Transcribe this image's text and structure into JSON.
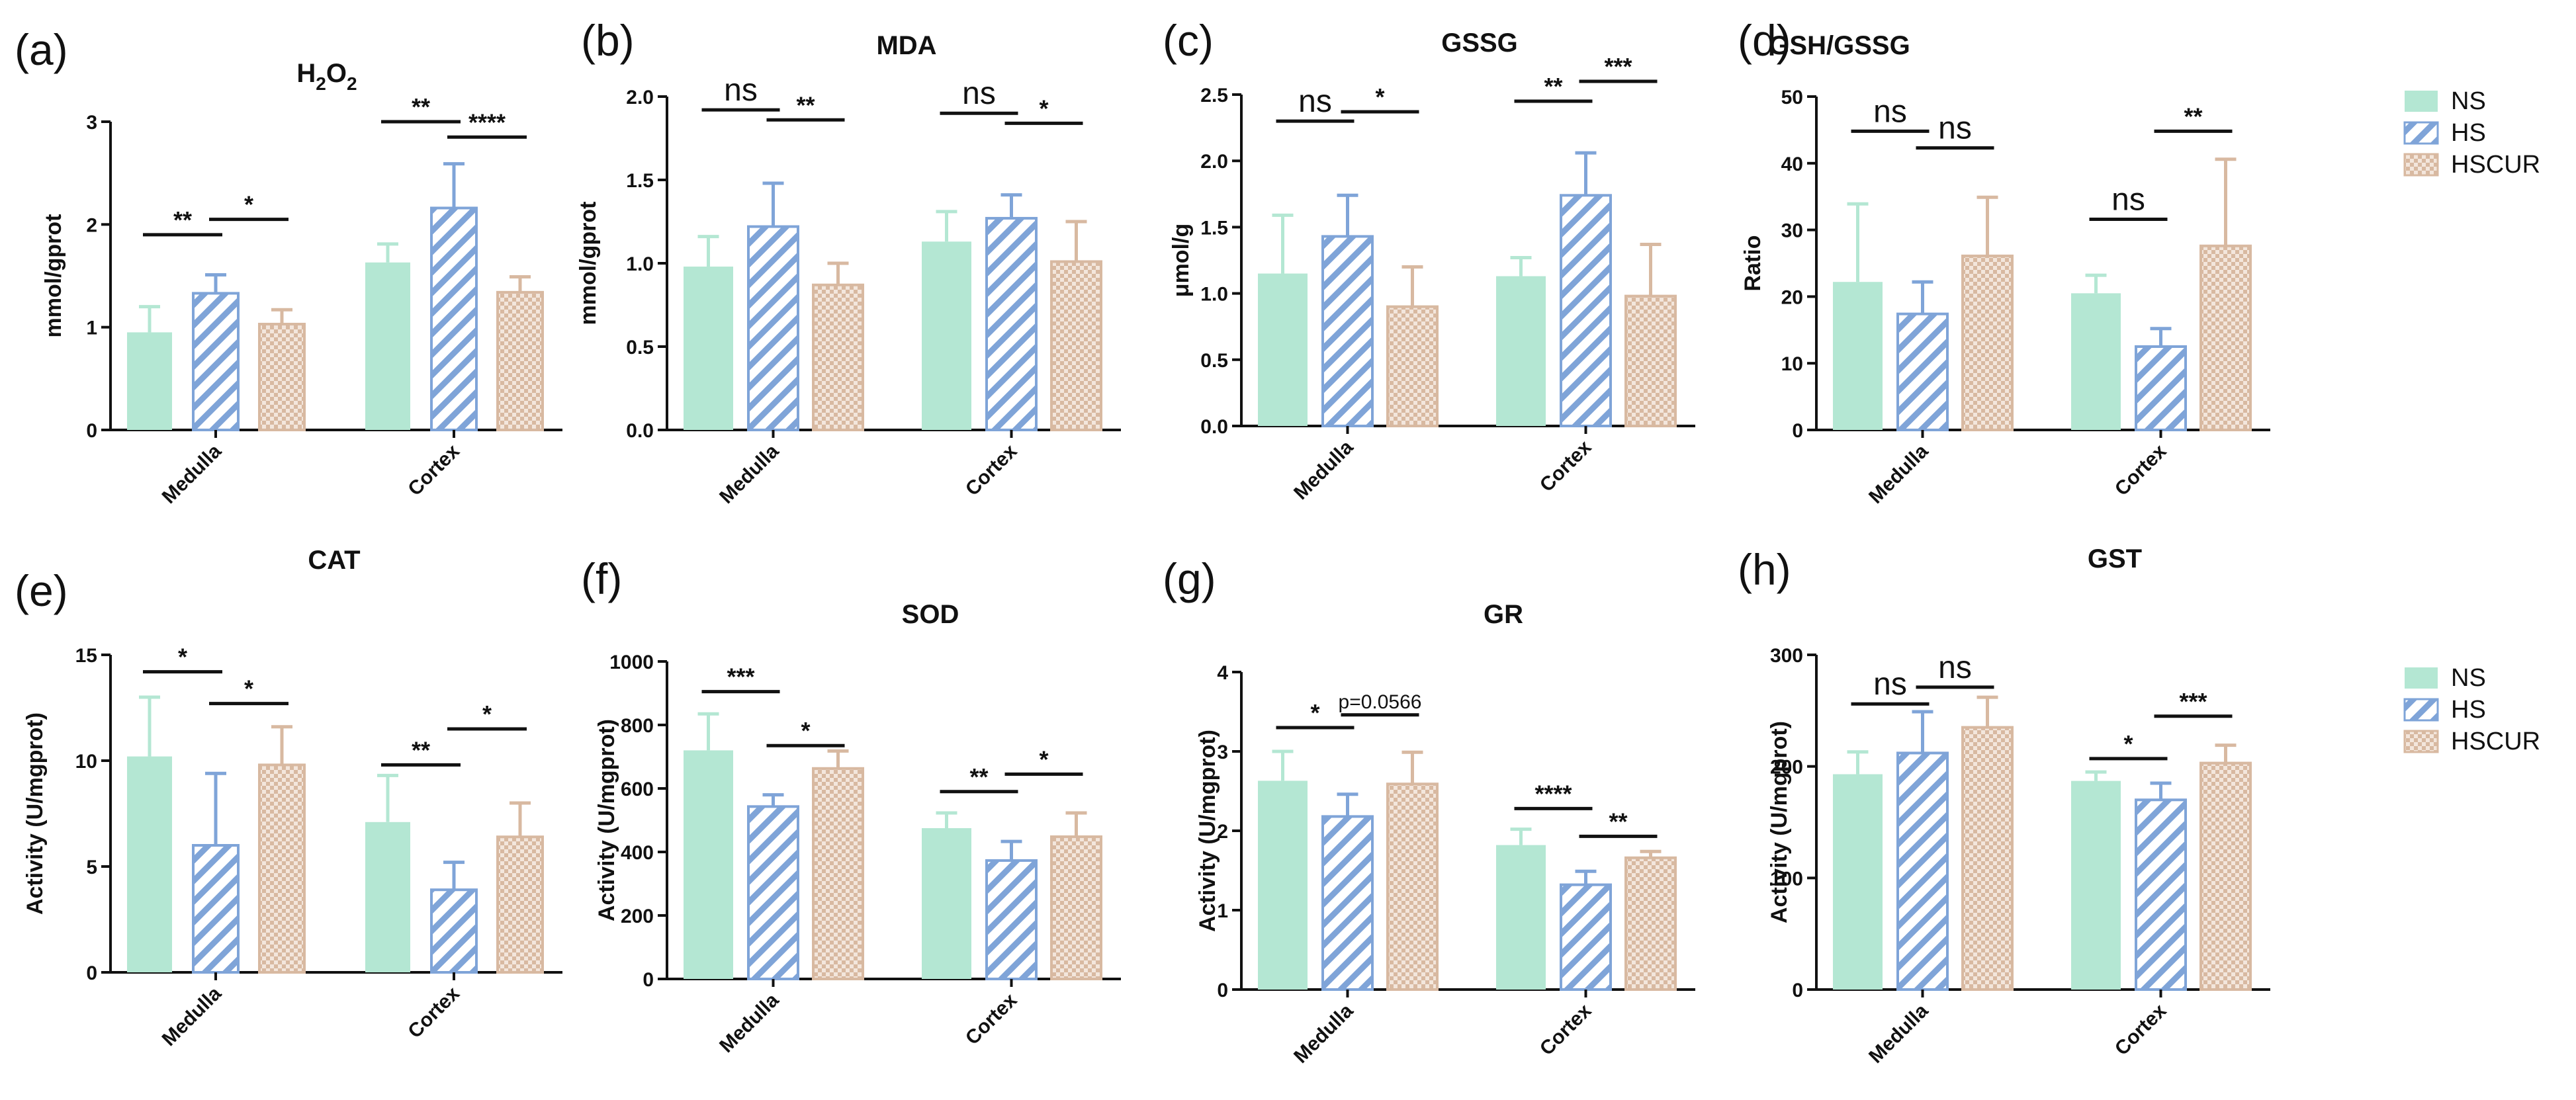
{
  "groups": [
    "Medulla",
    "Cortex"
  ],
  "colors": {
    "NS": "#b4e7d3",
    "HS": "#7fa4d8",
    "HSCUR": "#d8b9a1",
    "axis": "#111111"
  },
  "legends": [
    {
      "entries": [
        "NS",
        "HS",
        "HSCUR"
      ]
    },
    {
      "entries": [
        "NS",
        "HS",
        "HSCUR"
      ]
    }
  ],
  "chart_data": [
    {
      "type": "bar",
      "letter": "(a)",
      "title": "H2O2",
      "title_main": "H",
      "title_sub": "2",
      "title_main2": "O",
      "title_sub2": "2",
      "ylabel": "mmol/gprot",
      "ylim": [
        0,
        3
      ],
      "yticks": [
        "0",
        "1",
        "2",
        "3"
      ],
      "categories": [
        "Medulla",
        "Cortex"
      ],
      "series": [
        {
          "name": "NS",
          "values": [
            0.95,
            1.63
          ],
          "errors": [
            0.25,
            0.18
          ]
        },
        {
          "name": "HS",
          "values": [
            1.33,
            2.16
          ],
          "errors": [
            0.18,
            0.43
          ]
        },
        {
          "name": "HSCUR",
          "values": [
            1.03,
            1.34
          ],
          "errors": [
            0.14,
            0.15
          ]
        }
      ],
      "annotations": [
        {
          "group": 0,
          "from": 0,
          "to": 1,
          "text": "**",
          "y": 1.9
        },
        {
          "group": 0,
          "from": 1,
          "to": 2,
          "text": "*",
          "y": 2.05
        },
        {
          "group": 1,
          "from": 0,
          "to": 1,
          "text": "**",
          "y": 3.0
        },
        {
          "group": 1,
          "from": 1,
          "to": 2,
          "text": "****",
          "y": 2.85
        }
      ]
    },
    {
      "type": "bar",
      "letter": "(b)",
      "title": "MDA",
      "ylabel": "mmol/gprot",
      "ylim": [
        0,
        2
      ],
      "yticks": [
        "0.0",
        "0.5",
        "1.0",
        "1.5",
        "2.0"
      ],
      "categories": [
        "Medulla",
        "Cortex"
      ],
      "series": [
        {
          "name": "NS",
          "values": [
            0.98,
            1.13
          ],
          "errors": [
            0.18,
            0.18
          ]
        },
        {
          "name": "HS",
          "values": [
            1.22,
            1.27
          ],
          "errors": [
            0.26,
            0.14
          ]
        },
        {
          "name": "HSCUR",
          "values": [
            0.87,
            1.01
          ],
          "errors": [
            0.13,
            0.24
          ]
        }
      ],
      "annotations": [
        {
          "group": 0,
          "from": 0,
          "to": 1,
          "text": "ns",
          "y": 1.92
        },
        {
          "group": 0,
          "from": 1,
          "to": 2,
          "text": "**",
          "y": 1.86
        },
        {
          "group": 1,
          "from": 0,
          "to": 1,
          "text": "ns",
          "y": 1.9
        },
        {
          "group": 1,
          "from": 1,
          "to": 2,
          "text": "*",
          "y": 1.84
        }
      ]
    },
    {
      "type": "bar",
      "letter": "(c)",
      "title": "GSSG",
      "ylabel": "μmol/g",
      "ylim": [
        0,
        2.5
      ],
      "yticks": [
        "0.0",
        "0.5",
        "1.0",
        "1.5",
        "2.0",
        "2.5"
      ],
      "categories": [
        "Medulla",
        "Cortex"
      ],
      "series": [
        {
          "name": "NS",
          "values": [
            1.15,
            1.13
          ],
          "errors": [
            0.44,
            0.14
          ]
        },
        {
          "name": "HS",
          "values": [
            1.43,
            1.74
          ],
          "errors": [
            0.31,
            0.32
          ]
        },
        {
          "name": "HSCUR",
          "values": [
            0.9,
            0.98
          ],
          "errors": [
            0.3,
            0.39
          ]
        }
      ],
      "annotations": [
        {
          "group": 0,
          "from": 0,
          "to": 1,
          "text": "ns",
          "y": 2.3
        },
        {
          "group": 0,
          "from": 1,
          "to": 2,
          "text": "*",
          "y": 2.37
        },
        {
          "group": 1,
          "from": 0,
          "to": 1,
          "text": "**",
          "y": 2.45
        },
        {
          "group": 1,
          "from": 1,
          "to": 2,
          "text": "***",
          "y": 2.6
        }
      ]
    },
    {
      "type": "bar",
      "letter": "(d)",
      "title": "GSH/GSSG",
      "ylabel": "Ratio",
      "ylim": [
        0,
        50
      ],
      "yticks": [
        "0",
        "10",
        "20",
        "30",
        "40",
        "50"
      ],
      "categories": [
        "Medulla",
        "Cortex"
      ],
      "series": [
        {
          "name": "NS",
          "values": [
            22.2,
            20.5
          ],
          "errors": [
            11.7,
            2.7
          ]
        },
        {
          "name": "HS",
          "values": [
            17.4,
            12.5
          ],
          "errors": [
            4.8,
            2.7
          ]
        },
        {
          "name": "HSCUR",
          "values": [
            26.1,
            27.6
          ],
          "errors": [
            8.8,
            13.0
          ]
        }
      ],
      "annotations": [
        {
          "group": 0,
          "from": 0,
          "to": 1,
          "text": "ns",
          "y": 44.8
        },
        {
          "group": 0,
          "from": 1,
          "to": 2,
          "text": "ns",
          "y": 42.3
        },
        {
          "group": 1,
          "from": 0,
          "to": 1,
          "text": "ns",
          "y": 31.6
        },
        {
          "group": 1,
          "from": 1,
          "to": 2,
          "text": "**",
          "y": 44.8
        }
      ]
    },
    {
      "type": "bar",
      "letter": "(e)",
      "title": "CAT",
      "ylabel": "Activity (U/mgprot)",
      "ylim": [
        0,
        15
      ],
      "yticks": [
        "0",
        "5",
        "10",
        "15"
      ],
      "categories": [
        "Medulla",
        "Cortex"
      ],
      "series": [
        {
          "name": "NS",
          "values": [
            10.2,
            7.1
          ],
          "errors": [
            2.8,
            2.2
          ]
        },
        {
          "name": "HS",
          "values": [
            6.0,
            3.9
          ],
          "errors": [
            3.4,
            1.3
          ]
        },
        {
          "name": "HSCUR",
          "values": [
            9.8,
            6.4
          ],
          "errors": [
            1.8,
            1.6
          ]
        }
      ],
      "annotations": [
        {
          "group": 0,
          "from": 0,
          "to": 1,
          "text": "*",
          "y": 14.2
        },
        {
          "group": 0,
          "from": 1,
          "to": 2,
          "text": "*",
          "y": 12.7
        },
        {
          "group": 1,
          "from": 0,
          "to": 1,
          "text": "**",
          "y": 9.8
        },
        {
          "group": 1,
          "from": 1,
          "to": 2,
          "text": "*",
          "y": 11.5
        }
      ]
    },
    {
      "type": "bar",
      "letter": "(f)",
      "title": "SOD",
      "ylabel": "Activity (U/mgprot)",
      "ylim": [
        0,
        1000
      ],
      "yticks": [
        "0",
        "200",
        "400",
        "600",
        "800",
        "1000"
      ],
      "categories": [
        "Medulla",
        "Cortex"
      ],
      "series": [
        {
          "name": "NS",
          "values": [
            720,
            475
          ],
          "errors": [
            115,
            48
          ]
        },
        {
          "name": "HS",
          "values": [
            543,
            373
          ],
          "errors": [
            37,
            60
          ]
        },
        {
          "name": "HSCUR",
          "values": [
            663,
            448
          ],
          "errors": [
            55,
            75
          ]
        }
      ],
      "annotations": [
        {
          "group": 0,
          "from": 0,
          "to": 1,
          "text": "***",
          "y": 905
        },
        {
          "group": 0,
          "from": 1,
          "to": 2,
          "text": "*",
          "y": 735
        },
        {
          "group": 1,
          "from": 0,
          "to": 1,
          "text": "**",
          "y": 590
        },
        {
          "group": 1,
          "from": 1,
          "to": 2,
          "text": "*",
          "y": 645
        }
      ]
    },
    {
      "type": "bar",
      "letter": "(g)",
      "title": "GR",
      "ylabel": "Activity (U/mgprot)",
      "ylim": [
        0,
        4
      ],
      "yticks": [
        "0",
        "1",
        "2",
        "3",
        "4"
      ],
      "categories": [
        "Medulla",
        "Cortex"
      ],
      "series": [
        {
          "name": "NS",
          "values": [
            2.63,
            1.82
          ],
          "errors": [
            0.37,
            0.2
          ]
        },
        {
          "name": "HS",
          "values": [
            2.18,
            1.32
          ],
          "errors": [
            0.28,
            0.17
          ]
        },
        {
          "name": "HSCUR",
          "values": [
            2.59,
            1.66
          ],
          "errors": [
            0.4,
            0.08
          ]
        }
      ],
      "annotations": [
        {
          "group": 0,
          "from": 0,
          "to": 1,
          "text": "*",
          "y": 3.3
        },
        {
          "group": 0,
          "from": 1,
          "to": 2,
          "text": "p=0.0566",
          "y": 3.46
        },
        {
          "group": 1,
          "from": 0,
          "to": 1,
          "text": "****",
          "y": 2.28
        },
        {
          "group": 1,
          "from": 1,
          "to": 2,
          "text": "**",
          "y": 1.93
        }
      ]
    },
    {
      "type": "bar",
      "letter": "(h)",
      "title": "GST",
      "ylabel": "Activity (U/mgprot)",
      "ylim": [
        0,
        300
      ],
      "yticks": [
        "0",
        "100",
        "200",
        "300"
      ],
      "categories": [
        "Medulla",
        "Cortex"
      ],
      "series": [
        {
          "name": "NS",
          "values": [
            193,
            187
          ],
          "errors": [
            20,
            8
          ]
        },
        {
          "name": "HS",
          "values": [
            212,
            170
          ],
          "errors": [
            37,
            15
          ]
        },
        {
          "name": "HSCUR",
          "values": [
            235,
            203
          ],
          "errors": [
            27,
            16
          ]
        }
      ],
      "annotations": [
        {
          "group": 0,
          "from": 0,
          "to": 1,
          "text": "ns",
          "y": 256
        },
        {
          "group": 0,
          "from": 1,
          "to": 2,
          "text": "ns",
          "y": 271
        },
        {
          "group": 1,
          "from": 0,
          "to": 1,
          "text": "*",
          "y": 207
        },
        {
          "group": 1,
          "from": 1,
          "to": 2,
          "text": "***",
          "y": 245
        }
      ]
    }
  ]
}
